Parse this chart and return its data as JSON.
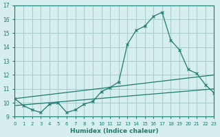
{
  "xlabel": "Humidex (Indice chaleur)",
  "background_color": "#d6eeee",
  "grid_color": "#aacccc",
  "line_color": "#1a7a6e",
  "xlim": [
    0,
    23
  ],
  "ylim": [
    9,
    17
  ],
  "yticks": [
    9,
    10,
    11,
    12,
    13,
    14,
    15,
    16,
    17
  ],
  "xticks": [
    0,
    1,
    2,
    3,
    4,
    5,
    6,
    7,
    8,
    9,
    10,
    11,
    12,
    13,
    14,
    15,
    16,
    17,
    18,
    19,
    20,
    21,
    22,
    23
  ],
  "line1_x": [
    0,
    1,
    2,
    3,
    4,
    5,
    6,
    7,
    8,
    9,
    10,
    11,
    12,
    13,
    14,
    15,
    16,
    17,
    18,
    19,
    20,
    21,
    22,
    23
  ],
  "line1_y": [
    10.3,
    9.8,
    9.5,
    9.3,
    9.9,
    10.0,
    9.3,
    9.5,
    9.9,
    10.1,
    10.8,
    11.1,
    11.5,
    14.2,
    15.2,
    15.5,
    16.2,
    16.5,
    14.5,
    13.8,
    12.4,
    12.1,
    11.3,
    10.7
  ],
  "line2_x": [
    0,
    23
  ],
  "line2_y": [
    10.3,
    12.0
  ],
  "line3_x": [
    0,
    23
  ],
  "line3_y": [
    9.8,
    11.0
  ]
}
